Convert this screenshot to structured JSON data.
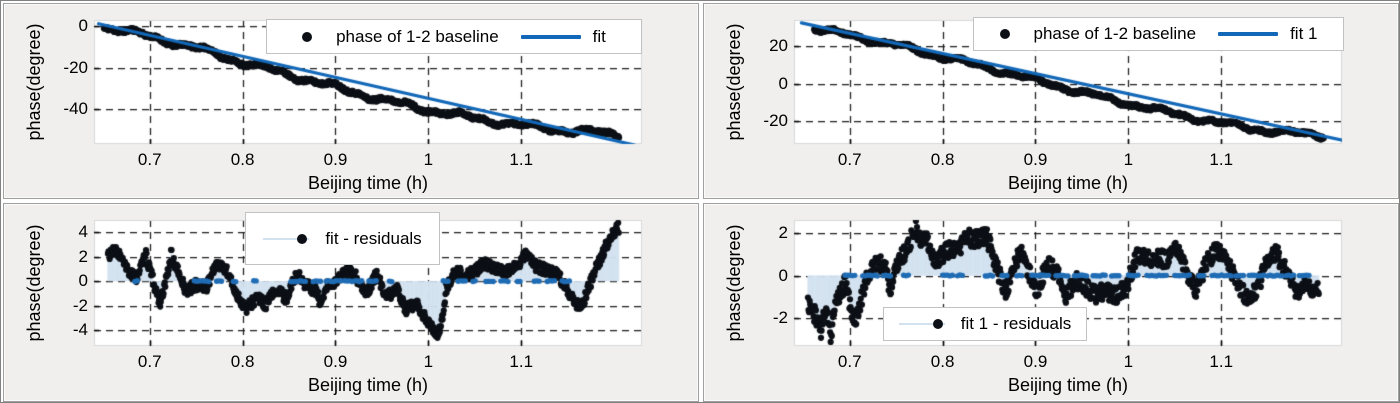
{
  "window": {
    "background": "#ffffff",
    "frame_border": "#808080"
  },
  "style": {
    "panel_bg": "#f0efee",
    "plot_bg": "#ffffff",
    "grid_color": "#1c1c1c",
    "text_color": "#000000",
    "fit_blue": "#1268b8",
    "stem_blue": "#d3e2f0",
    "zero_dot_blue": "#1f6cb5",
    "marker_black": "#0c1016",
    "plot_edge": "#d8d8d8",
    "legend_border": "#c2c2c2"
  },
  "chart_data": [
    {
      "id": "top-left",
      "type": "scatter",
      "xlabel": "Beijing time (h)",
      "ylabel": "phase(degree)",
      "xlim": [
        0.64,
        1.23
      ],
      "ylim": [
        -57,
        3
      ],
      "xticks": [
        0.7,
        0.8,
        0.9,
        1.0,
        1.1
      ],
      "xtick_labels": [
        "0.7",
        "0.8",
        "0.9",
        "1",
        "1.1"
      ],
      "yticks": [
        0,
        -20,
        -40
      ],
      "ytick_labels": [
        "0",
        "-20",
        "-40"
      ],
      "grid": true,
      "legend": {
        "position": "top-right-inside",
        "items": [
          {
            "marker": "dot",
            "label": "phase of 1-2 baseline"
          },
          {
            "marker": "line",
            "label": "fit"
          }
        ]
      },
      "series": [
        {
          "name": "phase of 1-2 baseline",
          "kind": "scatter_band",
          "seed": 11,
          "x_start": 0.651,
          "x_end": 1.205,
          "points": 780,
          "trend_points": [
            [
              0.651,
              -0.3
            ],
            [
              0.7,
              -5.0
            ],
            [
              0.75,
              -10.5
            ],
            [
              0.8,
              -17.5
            ],
            [
              0.85,
              -23.5
            ],
            [
              0.9,
              -29.5
            ],
            [
              0.95,
              -35.5
            ],
            [
              1.0,
              -40.5
            ],
            [
              1.05,
              -44.5
            ],
            [
              1.1,
              -48.0
            ],
            [
              1.15,
              -50.5
            ],
            [
              1.205,
              -52.5
            ]
          ],
          "wiggle_amp": 1.1,
          "wiggle_amp2": 0.6,
          "jitter": 0.8,
          "marker_radius": 3.4
        },
        {
          "name": "fit",
          "kind": "line",
          "line_points": [
            [
              0.645,
              1.2
            ],
            [
              1.222,
              -57.5
            ]
          ],
          "width": 3.2
        }
      ]
    },
    {
      "id": "top-right",
      "type": "scatter",
      "xlabel": "Beijing time (h)",
      "ylabel": "phase(degree)",
      "xlim": [
        0.64,
        1.23
      ],
      "ylim": [
        -32,
        34
      ],
      "xticks": [
        0.7,
        0.8,
        0.9,
        1.0,
        1.1
      ],
      "xtick_labels": [
        "0.7",
        "0.8",
        "0.9",
        "1",
        "1.1"
      ],
      "yticks": [
        20,
        0,
        -20
      ],
      "ytick_labels": [
        "20",
        "0",
        "-20"
      ],
      "grid": true,
      "legend": {
        "position": "top-right-inside",
        "items": [
          {
            "marker": "dot",
            "label": "phase of 1-2 baseline"
          },
          {
            "marker": "line",
            "label": "fit 1"
          }
        ]
      },
      "series": [
        {
          "name": "phase of 1-2 baseline",
          "kind": "scatter_band",
          "seed": 22,
          "x_start": 0.662,
          "x_end": 1.21,
          "points": 780,
          "trend_points": [
            [
              0.662,
              29.5
            ],
            [
              0.7,
              26.0
            ],
            [
              0.75,
              20.5
            ],
            [
              0.8,
              14.5
            ],
            [
              0.85,
              8.5
            ],
            [
              0.9,
              2.0
            ],
            [
              0.95,
              -4.5
            ],
            [
              1.0,
              -10.5
            ],
            [
              1.05,
              -16.0
            ],
            [
              1.1,
              -21.0
            ],
            [
              1.15,
              -25.0
            ],
            [
              1.21,
              -27.5
            ]
          ],
          "wiggle_amp": 1.0,
          "wiggle_amp2": 0.6,
          "jitter": 0.8,
          "marker_radius": 3.4
        },
        {
          "name": "fit 1",
          "kind": "line",
          "line_points": [
            [
              0.648,
              32.5
            ],
            [
              1.235,
              -30.5
            ]
          ],
          "width": 3.2
        }
      ]
    },
    {
      "id": "bottom-left",
      "type": "stem",
      "xlabel": "Beijing time (h)",
      "ylabel": "phase(degree)",
      "xlim": [
        0.64,
        1.23
      ],
      "ylim": [
        -5.3,
        5.0
      ],
      "xticks": [
        0.7,
        0.8,
        0.9,
        1.0,
        1.1
      ],
      "xtick_labels": [
        "0.7",
        "0.8",
        "0.9",
        "1",
        "1.1"
      ],
      "yticks": [
        4,
        2,
        0,
        -2,
        -4
      ],
      "ytick_labels": [
        "4",
        "2",
        "0",
        "-2",
        "-4"
      ],
      "grid": true,
      "legend": {
        "position": "top-left-inside",
        "items": [
          {
            "marker": "stem",
            "label": "fit - residuals"
          }
        ]
      },
      "series": [
        {
          "name": "fit - residuals",
          "kind": "stem",
          "seed": 33,
          "x_start": 0.655,
          "x_end": 1.205,
          "points": 900,
          "jitter": 0.45,
          "marker_radius": 3.1,
          "anchors": [
            [
              0.655,
              2.2
            ],
            [
              0.665,
              2.5
            ],
            [
              0.675,
              1.0
            ],
            [
              0.685,
              0.2
            ],
            [
              0.696,
              2.1
            ],
            [
              0.707,
              -0.9
            ],
            [
              0.712,
              -1.8
            ],
            [
              0.718,
              0.2
            ],
            [
              0.723,
              2.2
            ],
            [
              0.728,
              1.2
            ],
            [
              0.739,
              -0.8
            ],
            [
              0.75,
              -0.3
            ],
            [
              0.761,
              -0.5
            ],
            [
              0.771,
              1.4
            ],
            [
              0.782,
              1.0
            ],
            [
              0.793,
              -1.0
            ],
            [
              0.804,
              -2.3
            ],
            [
              0.815,
              -1.3
            ],
            [
              0.825,
              -1.9
            ],
            [
              0.836,
              -0.7
            ],
            [
              0.847,
              -1.4
            ],
            [
              0.858,
              0.6
            ],
            [
              0.868,
              -0.3
            ],
            [
              0.879,
              -0.8
            ],
            [
              0.885,
              -2.1
            ],
            [
              0.89,
              -0.5
            ],
            [
              0.901,
              -0.1
            ],
            [
              0.912,
              0.9
            ],
            [
              0.922,
              0.4
            ],
            [
              0.933,
              -1.1
            ],
            [
              0.944,
              0.6
            ],
            [
              0.955,
              -1.3
            ],
            [
              0.966,
              -0.7
            ],
            [
              0.976,
              -2.3
            ],
            [
              0.987,
              -1.9
            ],
            [
              0.998,
              -3.1
            ],
            [
              1.009,
              -4.4
            ],
            [
              1.014,
              -3.6
            ],
            [
              1.019,
              -0.6
            ],
            [
              1.03,
              0.9
            ],
            [
              1.041,
              0.4
            ],
            [
              1.052,
              0.9
            ],
            [
              1.062,
              1.5
            ],
            [
              1.073,
              1.0
            ],
            [
              1.084,
              0.8
            ],
            [
              1.095,
              1.2
            ],
            [
              1.105,
              2.2
            ],
            [
              1.116,
              1.2
            ],
            [
              1.127,
              0.9
            ],
            [
              1.138,
              0.6
            ],
            [
              1.148,
              -0.4
            ],
            [
              1.159,
              -1.9
            ],
            [
              1.165,
              -2.1
            ],
            [
              1.17,
              -1.0
            ],
            [
              1.181,
              1.1
            ],
            [
              1.192,
              3.0
            ],
            [
              1.203,
              4.4
            ]
          ],
          "zero_runs": [
            [
              0.684,
              0.688
            ],
            [
              0.748,
              0.764
            ],
            [
              0.772,
              0.778
            ],
            [
              0.79,
              0.794
            ],
            [
              0.812,
              0.816
            ],
            [
              0.852,
              0.868
            ],
            [
              0.876,
              0.884
            ],
            [
              0.89,
              0.906
            ],
            [
              0.91,
              0.93
            ],
            [
              0.936,
              0.944
            ],
            [
              0.958,
              0.962
            ],
            [
              1.016,
              1.022
            ],
            [
              1.032,
              1.04
            ],
            [
              1.048,
              1.052
            ],
            [
              1.062,
              1.07
            ],
            [
              1.078,
              1.086
            ],
            [
              1.096,
              1.1
            ],
            [
              1.114,
              1.12
            ],
            [
              1.128,
              1.138
            ],
            [
              1.144,
              1.152
            ]
          ]
        }
      ]
    },
    {
      "id": "bottom-right",
      "type": "stem",
      "xlabel": "Beijing time (h)",
      "ylabel": "phase(degree)",
      "xlim": [
        0.64,
        1.23
      ],
      "ylim": [
        -3.3,
        2.6
      ],
      "xticks": [
        0.7,
        0.8,
        0.9,
        1.0,
        1.1
      ],
      "xtick_labels": [
        "0.7",
        "0.8",
        "0.9",
        "1",
        "1.1"
      ],
      "yticks": [
        2,
        0,
        -2
      ],
      "ytick_labels": [
        "2",
        "0",
        "-2"
      ],
      "grid": true,
      "legend": {
        "position": "bottom-left-inside",
        "items": [
          {
            "marker": "stem",
            "label": "fit 1 - residuals"
          }
        ]
      },
      "series": [
        {
          "name": "fit 1 - residuals",
          "kind": "stem",
          "seed": 44,
          "x_start": 0.655,
          "x_end": 1.205,
          "points": 900,
          "jitter": 0.4,
          "marker_radius": 3.1,
          "anchors": [
            [
              0.655,
              -1.3
            ],
            [
              0.665,
              -2.0
            ],
            [
              0.669,
              -2.6
            ],
            [
              0.675,
              -1.4
            ],
            [
              0.68,
              -2.9
            ],
            [
              0.685,
              -1.2
            ],
            [
              0.696,
              -0.3
            ],
            [
              0.701,
              -1.6
            ],
            [
              0.707,
              -2.1
            ],
            [
              0.718,
              -0.1
            ],
            [
              0.728,
              0.6
            ],
            [
              0.739,
              0.4
            ],
            [
              0.744,
              -0.9
            ],
            [
              0.75,
              0.5
            ],
            [
              0.761,
              1.2
            ],
            [
              0.771,
              2.2
            ],
            [
              0.777,
              1.4
            ],
            [
              0.782,
              1.8
            ],
            [
              0.793,
              0.6
            ],
            [
              0.804,
              1.2
            ],
            [
              0.815,
              1.1
            ],
            [
              0.825,
              1.8
            ],
            [
              0.836,
              1.7
            ],
            [
              0.847,
              1.9
            ],
            [
              0.858,
              0.4
            ],
            [
              0.868,
              -0.8
            ],
            [
              0.879,
              0.7
            ],
            [
              0.885,
              1.1
            ],
            [
              0.89,
              0.5
            ],
            [
              0.901,
              -0.8
            ],
            [
              0.912,
              0.5
            ],
            [
              0.922,
              0.2
            ],
            [
              0.933,
              -0.9
            ],
            [
              0.944,
              -0.2
            ],
            [
              0.955,
              -0.6
            ],
            [
              0.966,
              -0.9
            ],
            [
              0.976,
              -0.7
            ],
            [
              0.987,
              -1.0
            ],
            [
              0.998,
              -0.5
            ],
            [
              1.009,
              0.9
            ],
            [
              1.019,
              0.8
            ],
            [
              1.03,
              0.9
            ],
            [
              1.041,
              0.7
            ],
            [
              1.052,
              1.3
            ],
            [
              1.062,
              0.3
            ],
            [
              1.073,
              -0.7
            ],
            [
              1.084,
              0.6
            ],
            [
              1.095,
              1.2
            ],
            [
              1.105,
              1.0
            ],
            [
              1.116,
              -0.3
            ],
            [
              1.127,
              -1.0
            ],
            [
              1.138,
              -0.7
            ],
            [
              1.148,
              0.5
            ],
            [
              1.159,
              1.1
            ],
            [
              1.17,
              0.2
            ],
            [
              1.181,
              -0.8
            ],
            [
              1.192,
              -0.5
            ],
            [
              1.203,
              -0.7
            ]
          ],
          "zero_runs": [
            [
              0.695,
              0.706
            ],
            [
              0.714,
              0.73
            ],
            [
              0.736,
              0.744
            ],
            [
              0.758,
              0.764
            ],
            [
              0.8,
              0.812
            ],
            [
              0.816,
              0.822
            ],
            [
              0.846,
              0.856
            ],
            [
              0.864,
              0.87
            ],
            [
              0.88,
              0.886
            ],
            [
              0.896,
              0.916
            ],
            [
              0.922,
              0.936
            ],
            [
              0.942,
              0.956
            ],
            [
              0.962,
              0.976
            ],
            [
              0.982,
              0.992
            ],
            [
              1.0,
              1.012
            ],
            [
              1.02,
              1.042
            ],
            [
              1.05,
              1.066
            ],
            [
              1.076,
              1.082
            ],
            [
              1.09,
              1.112
            ],
            [
              1.116,
              1.126
            ],
            [
              1.13,
              1.146
            ],
            [
              1.15,
              1.166
            ],
            [
              1.17,
              1.178
            ],
            [
              1.184,
              1.196
            ]
          ]
        }
      ]
    }
  ]
}
